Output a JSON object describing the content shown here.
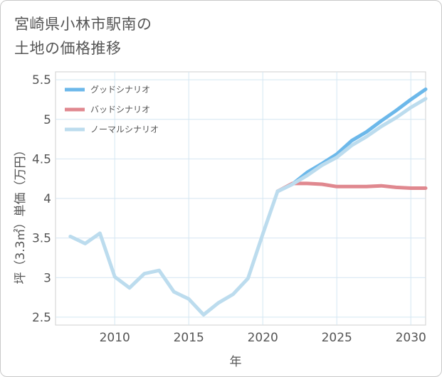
{
  "chart_data": {
    "type": "line",
    "title_lines": [
      "宮崎県小林市駅南の",
      "土地の価格推移"
    ],
    "xlabel": "年",
    "ylabel": "坪（3.3㎡）単価（万円）",
    "xlim": [
      2006,
      2031
    ],
    "ylim": [
      2.4,
      5.6
    ],
    "x_ticks": [
      2010,
      2015,
      2020,
      2025,
      2030
    ],
    "x_tick_labels": [
      "2010",
      "2015",
      "2020",
      "2025",
      "2030"
    ],
    "y_ticks": [
      2.5,
      3,
      3.5,
      4,
      4.5,
      5,
      5.5
    ],
    "y_tick_labels": [
      "2.5",
      "3",
      "3.5",
      "4",
      "4.5",
      "5",
      "5.5"
    ],
    "grid": true,
    "legend_position": "top-left",
    "series": [
      {
        "name": "グッドシナリオ",
        "color": "#6cb8ea",
        "x": [
          2021,
          2022,
          2023,
          2024,
          2025,
          2026,
          2027,
          2028,
          2029,
          2030,
          2031
        ],
        "values": [
          4.09,
          4.18,
          4.33,
          4.44,
          4.56,
          4.73,
          4.84,
          4.98,
          5.11,
          5.25,
          5.38
        ]
      },
      {
        "name": "バッドシナリオ",
        "color": "#e0888f",
        "x": [
          2021,
          2022,
          2023,
          2024,
          2025,
          2026,
          2027,
          2028,
          2029,
          2030,
          2031
        ],
        "values": [
          4.09,
          4.19,
          4.19,
          4.18,
          4.15,
          4.15,
          4.15,
          4.16,
          4.14,
          4.13,
          4.13
        ]
      },
      {
        "name": "ノーマルシナリオ",
        "color": "#bcdcee",
        "x": [
          2007,
          2008,
          2009,
          2010,
          2011,
          2012,
          2013,
          2014,
          2015,
          2016,
          2017,
          2018,
          2019,
          2020,
          2021,
          2022,
          2023,
          2024,
          2025,
          2026,
          2027,
          2028,
          2029,
          2030,
          2031
        ],
        "values": [
          3.52,
          3.43,
          3.56,
          3.01,
          2.87,
          3.05,
          3.09,
          2.82,
          2.73,
          2.53,
          2.68,
          2.79,
          2.99,
          3.55,
          4.09,
          4.18,
          4.29,
          4.42,
          4.52,
          4.67,
          4.78,
          4.91,
          5.02,
          5.15,
          5.26
        ]
      }
    ]
  }
}
